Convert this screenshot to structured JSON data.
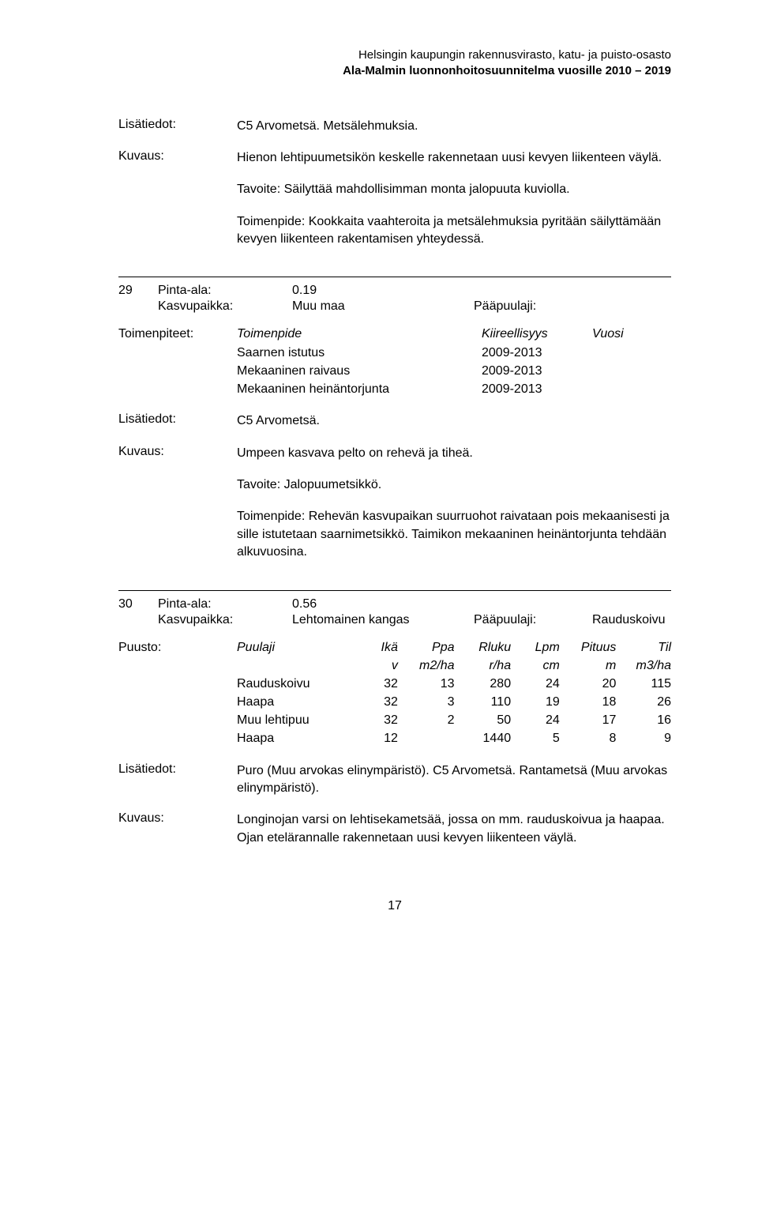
{
  "header": {
    "line1": "Helsingin kaupungin rakennusvirasto, katu- ja puisto-osasto",
    "line2": "Ala-Malmin luonnonhoitosuunnitelma vuosille 2010 – 2019"
  },
  "block1": {
    "lisatiedot_label": "Lisätiedot:",
    "lisatiedot_value": "C5 Arvometsä. Metsälehmuksia.",
    "kuvaus_label": "Kuvaus:",
    "kuvaus_p1": "Hienon lehtipuumetsikön keskelle rakennetaan uusi kevyen liikenteen väylä.",
    "kuvaus_p2": "Tavoite: Säilyttää mahdollisimman monta jalopuuta kuviolla.",
    "kuvaus_p3": "Toimenpide: Kookkaita vaahteroita ja metsälehmuksia pyritään säilyttämään kevyen liikenteen rakentamisen yhteydessä."
  },
  "sec29": {
    "id": "29",
    "pinta_label": "Pinta-ala:",
    "pinta_value": "0.19",
    "kasvu_label": "Kasvupaikka:",
    "kasvu_value": "Muu maa",
    "paapuu_label": "Pääpuulaji:",
    "paapuu_value": "",
    "tp_label": "Toimenpiteet:",
    "tp_head_name": "Toimenpide",
    "tp_head_kv": "Kiireellisyys",
    "tp_head_year": "Vuosi",
    "tp_rows": [
      {
        "name": "Saarnen istutus",
        "kv": "2009-2013"
      },
      {
        "name": "Mekaaninen raivaus",
        "kv": "2009-2013"
      },
      {
        "name": "Mekaaninen heinäntorjunta",
        "kv": "2009-2013"
      }
    ],
    "lisat_label": "Lisätiedot:",
    "lisat_value": "C5 Arvometsä.",
    "kuvaus_label": "Kuvaus:",
    "kuvaus_p1": "Umpeen kasvava pelto on rehevä ja tiheä.",
    "kuvaus_p2": "Tavoite: Jalopuumetsikkö.",
    "kuvaus_p3": "Toimenpide: Rehevän kasvupaikan suurruohot raivataan pois mekaanisesti ja sille istutetaan saarnimetsikkö. Taimikon mekaaninen heinäntorjunta tehdään alkuvuosina."
  },
  "sec30": {
    "id": "30",
    "pinta_label": "Pinta-ala:",
    "pinta_value": "0.56",
    "kasvu_label": "Kasvupaikka:",
    "kasvu_value": "Lehtomainen kangas",
    "paapuu_label": "Pääpuulaji:",
    "paapuu_value": "Rauduskoivu",
    "puusto_label": "Puusto:",
    "puusto_head": {
      "c2": "Puulaji",
      "c3": "Ikä",
      "c4": "Ppa",
      "c5": "Rluku",
      "c6": "Lpm",
      "c7": "Pituus",
      "c8": "Til",
      "u3": "v",
      "u4": "m2/ha",
      "u5": "r/ha",
      "u6": "cm",
      "u7": "m",
      "u8": "m3/ha"
    },
    "puusto_rows": [
      {
        "c2": "Rauduskoivu",
        "c3": "32",
        "c4": "13",
        "c5": "280",
        "c6": "24",
        "c7": "20",
        "c8": "115"
      },
      {
        "c2": "Haapa",
        "c3": "32",
        "c4": "3",
        "c5": "110",
        "c6": "19",
        "c7": "18",
        "c8": "26"
      },
      {
        "c2": "Muu lehtipuu",
        "c3": "32",
        "c4": "2",
        "c5": "50",
        "c6": "24",
        "c7": "17",
        "c8": "16"
      },
      {
        "c2": "Haapa",
        "c3": "12",
        "c4": "",
        "c5": "1440",
        "c6": "5",
        "c7": "8",
        "c8": "9"
      }
    ],
    "lisat_label": "Lisätiedot:",
    "lisat_value": "Puro (Muu arvokas elinympäristö). C5 Arvometsä. Rantametsä (Muu arvokas elinympäristö).",
    "kuvaus_label": "Kuvaus:",
    "kuvaus_p1": "Longinojan varsi on lehtisekametsää, jossa on mm. rauduskoivua ja haapaa. Ojan etelärannalle rakennetaan uusi kevyen liikenteen väylä."
  },
  "pagenum": "17"
}
